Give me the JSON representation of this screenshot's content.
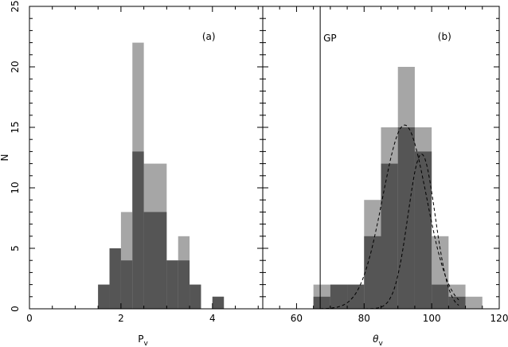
{
  "colors": {
    "light": "#a6a6a6",
    "dark": "#555555",
    "axis": "#000000"
  },
  "chart_data": [
    {
      "type": "bar",
      "panel_label": "(a)",
      "xlabel": "P",
      "xlabel_sub": "v",
      "ylabel": "N",
      "xlim": [
        0,
        5.1
      ],
      "ylim": [
        0,
        25
      ],
      "xticks": [
        0,
        2,
        4
      ],
      "yticks": [
        0,
        5,
        10,
        15,
        20,
        25
      ],
      "bin_width": 0.25,
      "bin_starts": [
        1.5,
        1.75,
        2.0,
        2.25,
        2.5,
        2.75,
        3.0,
        3.25,
        3.5,
        3.75,
        4.0
      ],
      "series": [
        {
          "values": [
            2,
            5,
            8,
            22,
            12,
            12,
            4,
            6,
            2,
            0,
            1
          ]
        },
        {
          "values": [
            2,
            5,
            4,
            13,
            8,
            8,
            4,
            4,
            2,
            0,
            1
          ]
        }
      ]
    },
    {
      "type": "bar",
      "panel_label": "(b)",
      "xlabel": "θ",
      "xlabel_sub": "v",
      "ylabel": "",
      "xlim": [
        50,
        120
      ],
      "ylim": [
        0,
        25
      ],
      "xticks": [
        60,
        80,
        100,
        120
      ],
      "yticks": [
        0,
        5,
        10,
        15,
        20,
        25
      ],
      "bin_width": 5,
      "bin_starts": [
        65,
        70,
        75,
        80,
        85,
        90,
        95,
        100,
        105,
        110
      ],
      "series": [
        {
          "values": [
            2,
            2,
            2,
            9,
            15,
            20,
            15,
            6,
            2,
            1
          ]
        },
        {
          "values": [
            1,
            2,
            2,
            6,
            12,
            15,
            13,
            2,
            1,
            0
          ]
        }
      ],
      "vline": {
        "x": 67,
        "label": "GP"
      },
      "curves": [
        {
          "style": "dashed",
          "mean": 92,
          "sd": 6.5,
          "amp": 15.2
        },
        {
          "style": "dashed",
          "mean": 97,
          "sd": 4.0,
          "amp": 12.8
        }
      ]
    }
  ]
}
